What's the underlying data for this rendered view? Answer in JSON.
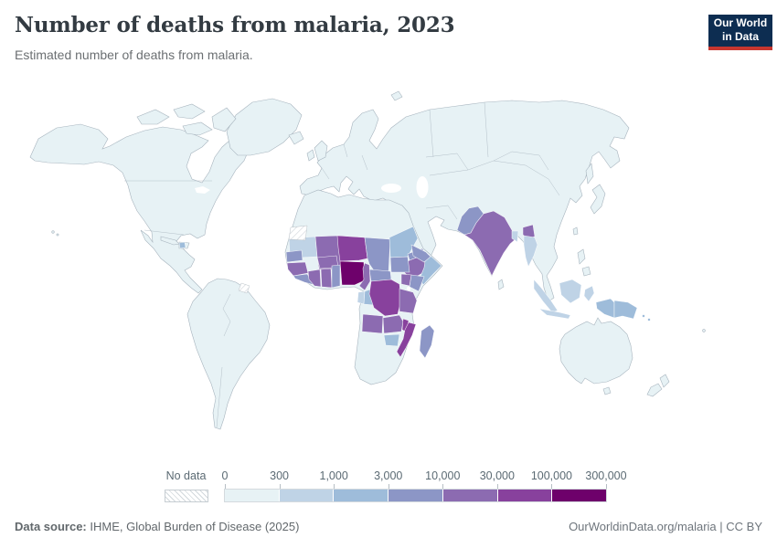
{
  "header": {
    "title": "Number of deaths from malaria, 2023",
    "subtitle": "Estimated number of deaths from malaria.",
    "logo_line1": "Our World",
    "logo_line2": "in Data",
    "logo_bg": "#0d2d51",
    "logo_accent": "#c7362f"
  },
  "legend": {
    "no_data_label": "No data",
    "tick_labels": [
      "0",
      "300",
      "1,000",
      "3,000",
      "10,000",
      "30,000",
      "100,000",
      "300,000"
    ],
    "bins": [
      {
        "range": "0–300",
        "color": "#e7f2f5"
      },
      {
        "range": "300–1,000",
        "color": "#bfd3e6"
      },
      {
        "range": "1,000–3,000",
        "color": "#9ebcda"
      },
      {
        "range": "3,000–10,000",
        "color": "#8c96c6"
      },
      {
        "range": "10,000–30,000",
        "color": "#8c6bb1"
      },
      {
        "range": "30,000–100,000",
        "color": "#88419d"
      },
      {
        "range": "100,000–300,000",
        "color": "#6e016b"
      }
    ]
  },
  "footer": {
    "source_prefix": "Data source:",
    "source_text": " IHME, Global Burden of Disease (2025)",
    "credit": "OurWorldinData.org/malaria | CC BY"
  },
  "chart_data": {
    "type": "choropleth",
    "title": "Number of deaths from malaria, 2023",
    "unit": "deaths",
    "year": 2023,
    "palette": {
      "land": "#e7f2f5",
      "coast": "#a7b4be",
      "no_data_pattern": "diagonal-hatch"
    },
    "bins": [
      {
        "label": "0–300",
        "color": "#e7f2f5"
      },
      {
        "label": "300–1,000",
        "color": "#bfd3e6"
      },
      {
        "label": "1,000–3,000",
        "color": "#9ebcda"
      },
      {
        "label": "3,000–10,000",
        "color": "#8c96c6"
      },
      {
        "label": "10,000–30,000",
        "color": "#8c6bb1"
      },
      {
        "label": "30,000–100,000",
        "color": "#88419d"
      },
      {
        "label": "100,000–300,000",
        "color": "#6e016b"
      },
      {
        "label": "No data",
        "color": "hatch"
      }
    ],
    "regions": {
      "nigeria": {
        "name": "Nigeria",
        "bin": "100,000–300,000",
        "color": "#6e016b"
      },
      "niger": {
        "name": "Niger",
        "bin": "30,000–100,000",
        "color": "#88419d"
      },
      "drc": {
        "name": "Democratic Republic of Congo",
        "bin": "30,000–100,000",
        "color": "#88419d"
      },
      "mozambique": {
        "name": "Mozambique",
        "bin": "30,000–100,000",
        "color": "#88419d"
      },
      "malawi": {
        "name": "Malawi",
        "bin": "30,000–100,000",
        "color": "#88419d"
      },
      "mali": {
        "name": "Mali",
        "bin": "10,000–30,000",
        "color": "#8c6bb1"
      },
      "burkina_faso": {
        "name": "Burkina Faso",
        "bin": "10,000–30,000",
        "color": "#8c6bb1"
      },
      "cote_divoire": {
        "name": "Cote d'Ivoire",
        "bin": "10,000–30,000",
        "color": "#8c6bb1"
      },
      "ghana": {
        "name": "Ghana",
        "bin": "10,000–30,000",
        "color": "#8c6bb1"
      },
      "guinea": {
        "name": "Guinea",
        "bin": "10,000–30,000",
        "color": "#8c6bb1"
      },
      "cameroon": {
        "name": "Cameroon",
        "bin": "10,000–30,000",
        "color": "#8c6bb1"
      },
      "ethiopia": {
        "name": "Ethiopia",
        "bin": "10,000–30,000",
        "color": "#8c6bb1"
      },
      "uganda": {
        "name": "Uganda",
        "bin": "10,000–30,000",
        "color": "#8c6bb1"
      },
      "angola": {
        "name": "Angola",
        "bin": "10,000–30,000",
        "color": "#8c6bb1"
      },
      "zambia": {
        "name": "Zambia",
        "bin": "10,000–30,000",
        "color": "#8c6bb1"
      },
      "tanzania": {
        "name": "Tanzania",
        "bin": "10,000–30,000",
        "color": "#8c6bb1"
      },
      "india": {
        "name": "India",
        "bin": "10,000–30,000",
        "color": "#8c6bb1"
      },
      "myanmar": {
        "name": "Myanmar",
        "bin": "10,000–30,000",
        "color": "#8c6bb1"
      },
      "pakistan": {
        "name": "Pakistan",
        "bin": "3,000–10,000",
        "color": "#8c96c6"
      },
      "chad": {
        "name": "Chad",
        "bin": "3,000–10,000",
        "color": "#8c96c6"
      },
      "car": {
        "name": "Central African Republic",
        "bin": "3,000–10,000",
        "color": "#8c96c6"
      },
      "south_sudan": {
        "name": "South Sudan",
        "bin": "3,000–10,000",
        "color": "#8c96c6"
      },
      "kenya": {
        "name": "Kenya",
        "bin": "3,000–10,000",
        "color": "#8c96c6"
      },
      "sierra_leone_liberia": {
        "name": "Sierra Leone / Liberia",
        "bin": "3,000–10,000",
        "color": "#8c96c6"
      },
      "togo_benin": {
        "name": "Togo / Benin",
        "bin": "3,000–10,000",
        "color": "#8c96c6"
      },
      "senegal": {
        "name": "Senegal",
        "bin": "3,000–10,000",
        "color": "#8c96c6"
      },
      "yemen": {
        "name": "Yemen",
        "bin": "3,000–10,000",
        "color": "#8c96c6"
      },
      "madagascar": {
        "name": "Madagascar",
        "bin": "3,000–10,000",
        "color": "#8c96c6"
      },
      "eritrea": {
        "name": "Eritrea",
        "bin": "3,000–10,000",
        "color": "#8c96c6"
      },
      "sudan": {
        "name": "Sudan",
        "bin": "1,000–3,000",
        "color": "#9ebcda"
      },
      "somalia": {
        "name": "Somalia",
        "bin": "1,000–3,000",
        "color": "#9ebcda"
      },
      "zimbabwe": {
        "name": "Zimbabwe",
        "bin": "1,000–3,000",
        "color": "#9ebcda"
      },
      "congo": {
        "name": "Congo",
        "bin": "1,000–3,000",
        "color": "#9ebcda"
      },
      "png": {
        "name": "Papua New Guinea",
        "bin": "1,000–3,000",
        "color": "#9ebcda"
      },
      "haiti": {
        "name": "Haiti",
        "bin": "1,000–3,000",
        "color": "#9ebcda"
      },
      "mauritania": {
        "name": "Mauritania",
        "bin": "300–1,000",
        "color": "#bfd3e6"
      },
      "gabon": {
        "name": "Gabon",
        "bin": "300–1,000",
        "color": "#bfd3e6"
      },
      "bangladesh": {
        "name": "Bangladesh",
        "bin": "300–1,000",
        "color": "#bfd3e6"
      },
      "indonesia": {
        "name": "Indonesia",
        "bin": "300–1,000",
        "color": "#bfd3e6"
      },
      "west_papua": {
        "name": "Indonesia (Papua)",
        "bin": "1,000–3,000",
        "color": "#9ebcda"
      },
      "myanmar_south": {
        "name": "Myanmar (south)",
        "bin": "300–1,000",
        "color": "#bfd3e6"
      },
      "no_data": {
        "name": "Western Sahara / French Guiana",
        "bin": "No data",
        "color": "hatch"
      },
      "rest_of_world": {
        "name": "All other countries shown",
        "bin": "0–300",
        "color": "#e7f2f5"
      }
    }
  }
}
